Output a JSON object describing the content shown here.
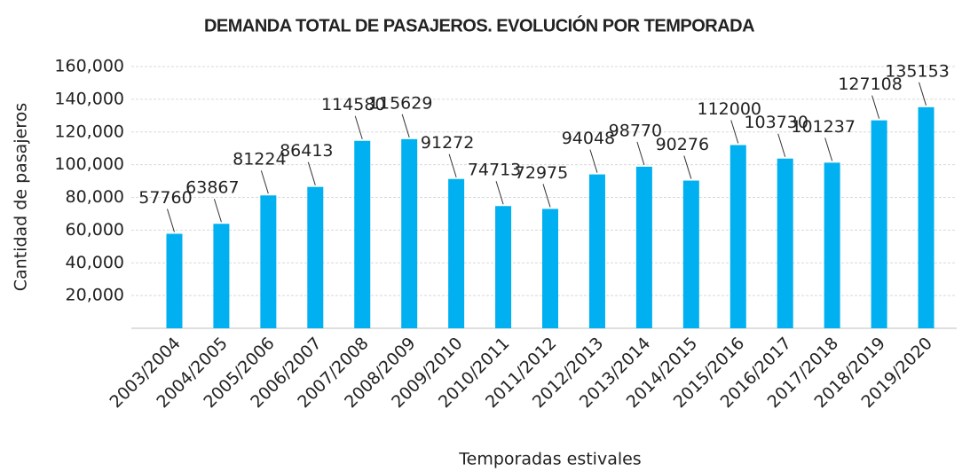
{
  "chart_data": {
    "type": "bar",
    "title": "DEMANDA TOTAL DE PASAJEROS. EVOLUCIÓN POR TEMPORADA",
    "x_label": "Temporadas estivales",
    "y_label": "Cantidad de pasajeros",
    "categories": [
      "2003/2004",
      "2004/2005",
      "2005/2006",
      "2006/2007",
      "2007/2008",
      "2008/2009",
      "2009/2010",
      "2010/2011",
      "2011/2012",
      "2012/2013",
      "2013/2014",
      "2014/2015",
      "2015/2016",
      "2016/2017",
      "2017/2018",
      "2018/2019",
      "2019/2020"
    ],
    "values": [
      57760,
      63867,
      81224,
      86413,
      114580,
      115629,
      91272,
      74713,
      72975,
      94048,
      98770,
      90276,
      112000,
      103730,
      101237,
      127108,
      135153
    ],
    "color": "#00b0f0",
    "ylim": [
      0,
      160000
    ],
    "yticks": [
      {
        "value": 20000,
        "label": "20,000"
      },
      {
        "value": 40000,
        "label": "40,000"
      },
      {
        "value": 60000,
        "label": "60,000"
      },
      {
        "value": 80000,
        "label": "80,000"
      },
      {
        "value": 100000,
        "label": "100,000"
      },
      {
        "value": 120000,
        "label": "120,000"
      },
      {
        "value": 140000,
        "label": "140,000"
      },
      {
        "value": 160000,
        "label": "160,000"
      }
    ],
    "grid": true
  }
}
